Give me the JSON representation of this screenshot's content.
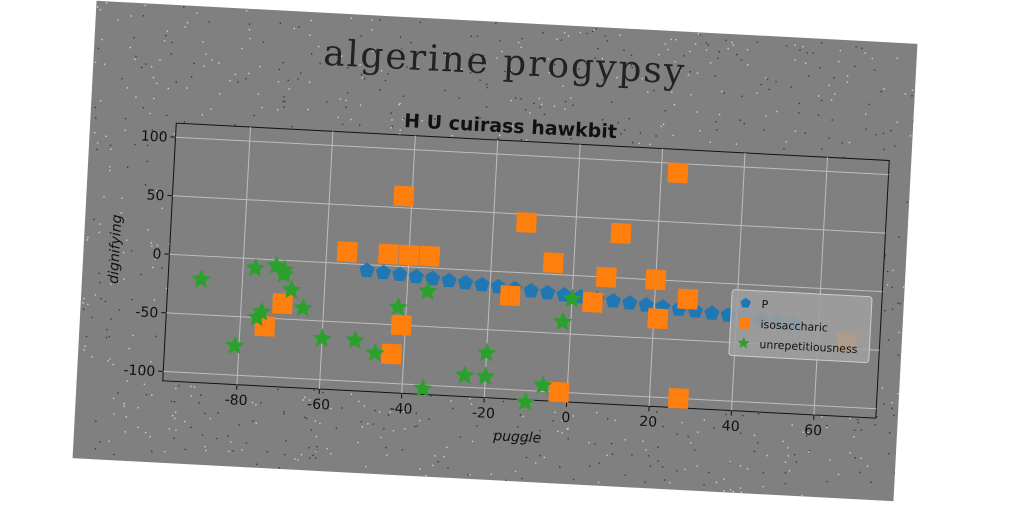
{
  "header": {
    "title": "algerine progypsy"
  },
  "chart_data": {
    "type": "scatter",
    "title": "H U cuirass hawkbit",
    "xlabel": "puggle",
    "ylabel": "dignifying",
    "xlim": [
      -98,
      75
    ],
    "ylim": [
      -108,
      112
    ],
    "xticks": [
      "-80",
      "-60",
      "-40",
      "-20",
      "0",
      "20",
      "40",
      "60"
    ],
    "yticks": [
      "-100",
      "-50",
      "0",
      "50",
      "100"
    ],
    "grid": true,
    "legend_position": "right",
    "series": [
      {
        "name": "P",
        "marker": "pentagon",
        "color": "#1f77b4",
        "x": [
          -50,
          -46,
          -42,
          -38,
          -34,
          -30,
          -26,
          -22,
          -18,
          -14,
          -10,
          -6,
          -2,
          2,
          6,
          10,
          14,
          18,
          22,
          26,
          30,
          34,
          38,
          42,
          46,
          50,
          54
        ],
        "y": [
          -5,
          -6,
          -7,
          -8,
          -9,
          -10,
          -11,
          -12,
          -13,
          -14,
          -15,
          -16,
          -17,
          -18,
          -19,
          -20,
          -21,
          -22,
          -23,
          -24,
          -25,
          -26,
          -27,
          -28,
          -29,
          -30,
          -31
        ]
      },
      {
        "name": "isosaccharic",
        "marker": "square",
        "color": "#ff7f0e",
        "x": [
          -55,
          -45,
          -40,
          -35,
          -42,
          -41,
          -43,
          -12,
          -5,
          11,
          24,
          -15,
          8,
          20,
          28,
          -2,
          5,
          21,
          27,
          67,
          -70,
          -74
        ],
        "y": [
          10,
          10,
          10,
          10,
          60,
          -50,
          -75,
          43,
          10,
          38,
          92,
          -20,
          0,
          0,
          -15,
          -100,
          -22,
          -33,
          -100,
          -45,
          -37,
          -57
        ]
      },
      {
        "name": "unrepetitiousness",
        "marker": "star",
        "color": "#2ca02c",
        "x": [
          -90,
          -77,
          -72,
          -70,
          -70,
          -68,
          -65,
          -75,
          -76,
          -81,
          -60,
          -52,
          -47,
          -42,
          -35,
          -35,
          -25,
          -20,
          -20,
          -10,
          -6,
          -2,
          0
        ],
        "y": [
          -20,
          -8,
          -5,
          -8,
          -12,
          -25,
          -40,
          -45,
          -50,
          -75,
          -65,
          -65,
          -75,
          -35,
          -20,
          -103,
          -90,
          -70,
          -90,
          -110,
          -95,
          -40,
          -20
        ]
      }
    ]
  }
}
